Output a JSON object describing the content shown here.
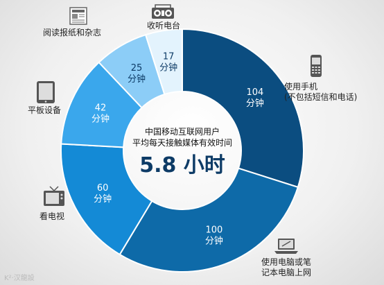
{
  "chart_data": {
    "type": "pie",
    "donut": true,
    "unit": "分钟",
    "center": {
      "line1": "中国移动互联网用户",
      "line2": "平均每天接触媒体有效时间",
      "value": "5.8 小时"
    },
    "slices": [
      {
        "label_lines": [
          "使用手机",
          "(不包括短信和电话)"
        ],
        "value": 104,
        "color": "#0b4d80",
        "icon": "mobile-phone-icon"
      },
      {
        "label_lines": [
          "使用电脑或笔",
          "记本电脑上网"
        ],
        "value": 100,
        "color": "#0e6aa8",
        "icon": "laptop-icon"
      },
      {
        "label_lines": [
          "看电视"
        ],
        "value": 60,
        "color": "#148ad6",
        "icon": "tv-icon"
      },
      {
        "label_lines": [
          "平板设备"
        ],
        "value": 42,
        "color": "#3aa7ec",
        "icon": "tablet-icon"
      },
      {
        "label_lines": [
          "阅读报纸和杂志"
        ],
        "value": 25,
        "color": "#8ccdf7",
        "icon": "newspaper-icon"
      },
      {
        "label_lines": [
          "收听电台"
        ],
        "value": 17,
        "color": "#e3f3fd",
        "icon": "radio-icon"
      }
    ]
  },
  "watermark": "K²·汉龍設"
}
